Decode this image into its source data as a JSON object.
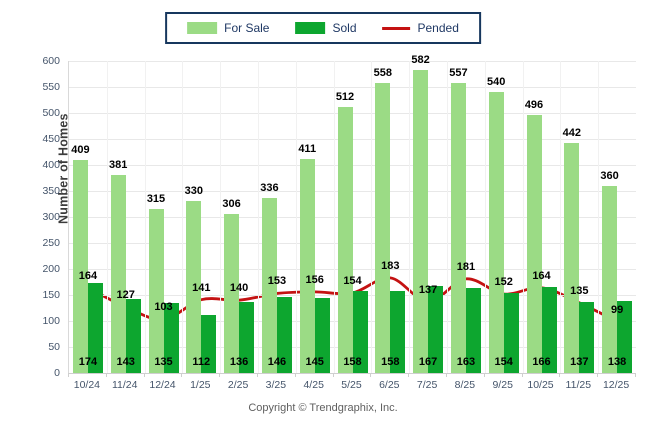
{
  "copyright": "Copyright © Trendgraphix, Inc.",
  "colors": {
    "for_sale": "#9BDB85",
    "sold": "#0DA62F",
    "pended": "#C41212",
    "legend_border": "#17375E",
    "grid": "#E8E8E8",
    "axis_text": "#44546A",
    "value_label": "#000000"
  },
  "chart_data": {
    "type": "bar",
    "note": "grouped bars with overlaid smooth line",
    "categories": [
      "10/24",
      "11/24",
      "12/24",
      "1/25",
      "2/25",
      "3/25",
      "4/25",
      "5/25",
      "6/25",
      "7/25",
      "8/25",
      "9/25",
      "10/25",
      "11/25",
      "12/25"
    ],
    "series": [
      {
        "name": "For Sale",
        "type": "bar",
        "color": "#9BDB85",
        "values": [
          409,
          381,
          315,
          330,
          306,
          336,
          411,
          512,
          558,
          582,
          557,
          540,
          496,
          442,
          360
        ]
      },
      {
        "name": "Sold",
        "type": "bar",
        "color": "#0DA62F",
        "values": [
          174,
          143,
          135,
          112,
          136,
          146,
          145,
          158,
          158,
          167,
          163,
          154,
          166,
          137,
          138
        ]
      },
      {
        "name": "Pended",
        "type": "line",
        "color": "#C41212",
        "values": [
          164,
          127,
          103,
          141,
          140,
          153,
          156,
          154,
          183,
          137,
          181,
          152,
          164,
          135,
          99
        ]
      }
    ],
    "title": "",
    "xlabel": "",
    "ylabel": "Number of Homes",
    "ylim": [
      0,
      600
    ],
    "ytick_step": 50,
    "yticks": [
      0,
      50,
      100,
      150,
      200,
      250,
      300,
      350,
      400,
      450,
      500,
      550,
      600
    ],
    "grid": true,
    "legend_position": "top"
  }
}
